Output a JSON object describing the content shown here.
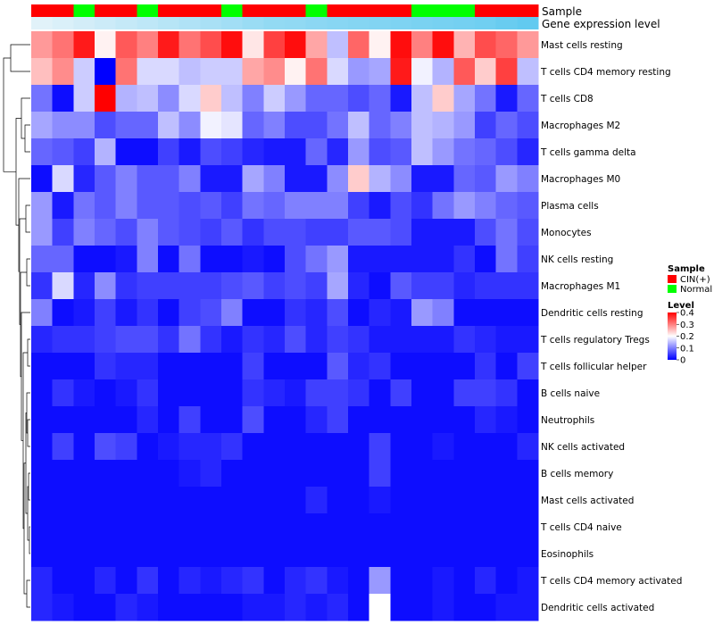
{
  "chart_data": {
    "type": "heatmap",
    "title": "",
    "annotation_tracks": [
      {
        "name": "Sample",
        "label": "Sample"
      },
      {
        "name": "Gene expression level",
        "label": "Gene expression level"
      }
    ],
    "rows": [
      "Mast cells resting",
      "T cells CD4 memory resting",
      "T cells CD8",
      "Macrophages M2",
      "T cells gamma delta",
      "Macrophages M0",
      "Plasma cells",
      "Monocytes",
      "NK cells resting",
      "Macrophages M1",
      "Dendritic cells resting",
      "T cells regulatory  Tregs",
      "T cells follicular helper",
      "B cells naive",
      "Neutrophils",
      "NK cells activated",
      "B cells memory",
      "Mast cells activated",
      "T cells CD4 naive",
      "Eosinophils",
      "T cells CD4 memory activated",
      "Dendritic cells activated"
    ],
    "sample_groups": [
      "CIN(+)",
      "CIN(+)",
      "Normal",
      "CIN(+)",
      "CIN(+)",
      "Normal",
      "CIN(+)",
      "CIN(+)",
      "CIN(+)",
      "Normal",
      "CIN(+)",
      "CIN(+)",
      "CIN(+)",
      "Normal",
      "CIN(+)",
      "CIN(+)",
      "CIN(+)",
      "CIN(+)",
      "Normal",
      "Normal",
      "Normal",
      "CIN(+)",
      "CIN(+)",
      "CIN(+)"
    ],
    "expression_track_values": [
      0.05,
      0.1,
      0.15,
      0.2,
      0.25,
      0.3,
      0.35,
      0.4,
      0.45,
      0.5,
      0.55,
      0.6,
      0.62,
      0.65,
      0.68,
      0.7,
      0.72,
      0.75,
      0.78,
      0.8,
      0.82,
      0.85,
      0.9,
      0.95
    ],
    "values": [
      [
        0.28,
        0.31,
        0.38,
        0.21,
        0.33,
        0.3,
        0.38,
        0.31,
        0.34,
        0.39,
        0.22,
        0.35,
        0.39,
        0.27,
        0.15,
        0.32,
        0.21,
        0.39,
        0.3,
        0.39,
        0.26,
        0.34,
        0.32,
        0.28
      ],
      [
        0.25,
        0.29,
        0.16,
        0.0,
        0.31,
        0.17,
        0.17,
        0.15,
        0.16,
        0.16,
        0.27,
        0.29,
        0.21,
        0.31,
        0.17,
        0.12,
        0.13,
        0.38,
        0.19,
        0.14,
        0.33,
        0.24,
        0.35,
        0.15
      ],
      [
        0.09,
        0.01,
        0.16,
        0.4,
        0.14,
        0.15,
        0.11,
        0.17,
        0.24,
        0.15,
        0.1,
        0.16,
        0.12,
        0.08,
        0.08,
        0.06,
        0.08,
        0.02,
        0.15,
        0.24,
        0.13,
        0.09,
        0.02,
        0.08
      ],
      [
        0.13,
        0.11,
        0.11,
        0.06,
        0.08,
        0.08,
        0.15,
        0.11,
        0.19,
        0.18,
        0.08,
        0.1,
        0.06,
        0.06,
        0.09,
        0.15,
        0.08,
        0.1,
        0.15,
        0.14,
        0.12,
        0.05,
        0.08,
        0.06
      ],
      [
        0.08,
        0.07,
        0.05,
        0.14,
        0.01,
        0.01,
        0.05,
        0.02,
        0.06,
        0.05,
        0.03,
        0.02,
        0.02,
        0.08,
        0.03,
        0.12,
        0.06,
        0.07,
        0.15,
        0.12,
        0.09,
        0.08,
        0.06,
        0.03
      ],
      [
        0.01,
        0.17,
        0.03,
        0.07,
        0.1,
        0.07,
        0.07,
        0.1,
        0.02,
        0.02,
        0.13,
        0.1,
        0.02,
        0.02,
        0.11,
        0.24,
        0.14,
        0.11,
        0.02,
        0.02,
        0.08,
        0.07,
        0.12,
        0.1
      ],
      [
        0.12,
        0.02,
        0.09,
        0.07,
        0.1,
        0.07,
        0.07,
        0.06,
        0.07,
        0.05,
        0.09,
        0.08,
        0.1,
        0.1,
        0.1,
        0.05,
        0.02,
        0.06,
        0.04,
        0.09,
        0.12,
        0.1,
        0.08,
        0.07
      ],
      [
        0.12,
        0.05,
        0.1,
        0.08,
        0.06,
        0.1,
        0.07,
        0.06,
        0.05,
        0.07,
        0.04,
        0.06,
        0.06,
        0.05,
        0.05,
        0.07,
        0.07,
        0.06,
        0.02,
        0.02,
        0.02,
        0.06,
        0.09,
        0.06
      ],
      [
        0.08,
        0.08,
        0.01,
        0.01,
        0.02,
        0.1,
        0.01,
        0.09,
        0.01,
        0.01,
        0.02,
        0.01,
        0.06,
        0.09,
        0.12,
        0.02,
        0.02,
        0.02,
        0.02,
        0.02,
        0.04,
        0.01,
        0.09,
        0.05
      ],
      [
        0.04,
        0.17,
        0.03,
        0.11,
        0.04,
        0.05,
        0.05,
        0.05,
        0.05,
        0.06,
        0.07,
        0.05,
        0.06,
        0.05,
        0.13,
        0.03,
        0.01,
        0.07,
        0.05,
        0.05,
        0.03,
        0.04,
        0.04,
        0.04
      ],
      [
        0.1,
        0.01,
        0.02,
        0.05,
        0.02,
        0.04,
        0.01,
        0.05,
        0.06,
        0.1,
        0.01,
        0.01,
        0.04,
        0.03,
        0.06,
        0.01,
        0.03,
        0.02,
        0.12,
        0.1,
        0.01,
        0.01,
        0.01,
        0.01
      ],
      [
        0.03,
        0.04,
        0.04,
        0.05,
        0.06,
        0.06,
        0.04,
        0.09,
        0.04,
        0.02,
        0.04,
        0.03,
        0.06,
        0.03,
        0.05,
        0.04,
        0.02,
        0.02,
        0.02,
        0.02,
        0.04,
        0.03,
        0.02,
        0.02
      ],
      [
        0.01,
        0.01,
        0.01,
        0.04,
        0.03,
        0.03,
        0.01,
        0.01,
        0.01,
        0.01,
        0.05,
        0.01,
        0.01,
        0.01,
        0.07,
        0.03,
        0.04,
        0.01,
        0.01,
        0.01,
        0.01,
        0.04,
        0.01,
        0.05
      ],
      [
        0.01,
        0.04,
        0.02,
        0.01,
        0.02,
        0.04,
        0.01,
        0.01,
        0.01,
        0.01,
        0.04,
        0.03,
        0.02,
        0.05,
        0.05,
        0.04,
        0.01,
        0.05,
        0.01,
        0.01,
        0.05,
        0.05,
        0.04,
        0.01
      ],
      [
        0.01,
        0.01,
        0.01,
        0.01,
        0.01,
        0.03,
        0.01,
        0.05,
        0.01,
        0.01,
        0.06,
        0.01,
        0.01,
        0.03,
        0.05,
        0.01,
        0.01,
        0.01,
        0.01,
        0.01,
        0.01,
        0.03,
        0.02,
        0.01
      ],
      [
        0.01,
        0.05,
        0.01,
        0.06,
        0.05,
        0.01,
        0.02,
        0.03,
        0.03,
        0.04,
        0.01,
        0.01,
        0.01,
        0.01,
        0.01,
        0.01,
        0.05,
        0.01,
        0.01,
        0.02,
        0.01,
        0.01,
        0.01,
        0.03
      ],
      [
        0.01,
        0.01,
        0.01,
        0.01,
        0.01,
        0.01,
        0.01,
        0.02,
        0.03,
        0.01,
        0.01,
        0.01,
        0.01,
        0.01,
        0.01,
        0.01,
        0.05,
        0.01,
        0.01,
        0.01,
        0.01,
        0.01,
        0.01,
        0.01
      ],
      [
        0.01,
        0.01,
        0.01,
        0.01,
        0.01,
        0.01,
        0.01,
        0.01,
        0.01,
        0.01,
        0.01,
        0.01,
        0.01,
        0.03,
        0.01,
        0.01,
        0.02,
        0.01,
        0.01,
        0.01,
        0.01,
        0.01,
        0.01,
        0.01
      ],
      [
        0.01,
        0.01,
        0.01,
        0.01,
        0.01,
        0.01,
        0.01,
        0.01,
        0.01,
        0.01,
        0.01,
        0.01,
        0.01,
        0.01,
        0.01,
        0.01,
        0.01,
        0.01,
        0.01,
        0.01,
        0.01,
        0.01,
        0.01,
        0.01
      ],
      [
        0.01,
        0.01,
        0.01,
        0.01,
        0.01,
        0.01,
        0.01,
        0.01,
        0.01,
        0.01,
        0.01,
        0.01,
        0.01,
        0.01,
        0.01,
        0.01,
        0.01,
        0.01,
        0.01,
        0.01,
        0.01,
        0.01,
        0.01,
        0.01
      ],
      [
        0.03,
        0.01,
        0.01,
        0.03,
        0.01,
        0.04,
        0.01,
        0.03,
        0.02,
        0.03,
        0.04,
        0.01,
        0.03,
        0.04,
        0.02,
        0.01,
        0.12,
        0.01,
        0.01,
        0.02,
        0.01,
        0.03,
        0.01,
        0.02
      ],
      [
        0.03,
        0.02,
        0.01,
        0.01,
        0.03,
        0.02,
        0.01,
        0.01,
        0.01,
        0.01,
        0.02,
        0.02,
        0.03,
        0.02,
        0.03,
        0.01,
        0.2,
        0.01,
        0.01,
        0.02,
        0.01,
        0.01,
        0.02,
        0.02
      ]
    ],
    "color_scale": {
      "min": 0,
      "max": 0.4,
      "low": "#0000ff",
      "mid": "#ffffff",
      "high": "#ff0000",
      "mid_value": 0.2
    },
    "legends": {
      "sample": {
        "title": "Sample",
        "entries": [
          {
            "label": "CIN(+)",
            "color": "#ff0000"
          },
          {
            "label": "Normal",
            "color": "#00ff00"
          }
        ]
      },
      "level": {
        "title": "Level",
        "ticks": [
          "0.4",
          "0.3",
          "0.2",
          "0.1",
          "0"
        ],
        "tick_values": [
          0.4,
          0.3,
          0.2,
          0.1,
          0
        ]
      }
    },
    "expression_track_colors": {
      "low": "#e8f4fa",
      "high": "#5bc8ef"
    }
  }
}
